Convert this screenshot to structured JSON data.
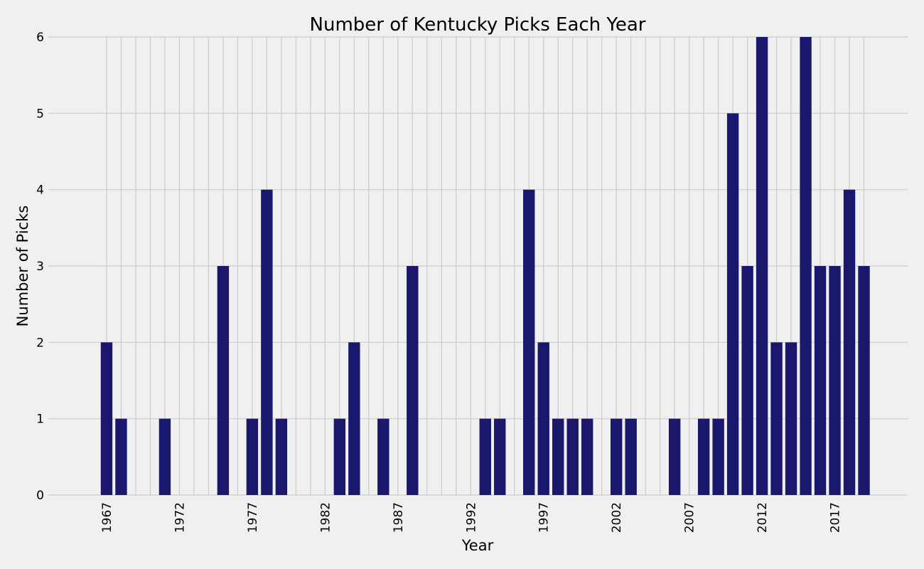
{
  "chart_data": {
    "type": "bar",
    "title": "Number of Kentucky Picks Each Year",
    "xlabel": "Year",
    "ylabel": "Number of Picks",
    "x": [
      1967,
      1968,
      1971,
      1975,
      1977,
      1978,
      1979,
      1983,
      1984,
      1986,
      1988,
      1993,
      1994,
      1996,
      1997,
      1998,
      1999,
      2000,
      2002,
      2003,
      2006,
      2008,
      2009,
      2010,
      2011,
      2012,
      2013,
      2014,
      2015,
      2016,
      2017,
      2018,
      2019
    ],
    "values": [
      2,
      1,
      1,
      3,
      1,
      4,
      1,
      1,
      2,
      1,
      3,
      1,
      1,
      4,
      2,
      1,
      1,
      1,
      1,
      1,
      1,
      1,
      1,
      5,
      3,
      6,
      2,
      2,
      6,
      3,
      3,
      4,
      3
    ],
    "xlim": [
      1963,
      2022
    ],
    "ylim": [
      0,
      6
    ],
    "xticks": [
      1967,
      1972,
      1977,
      1982,
      1987,
      1992,
      1997,
      2002,
      2007,
      2012,
      2017
    ],
    "xtick_labels": [
      "1967",
      "1972",
      "1977",
      "1982",
      "1987",
      "1992",
      "1997",
      "2002",
      "2007",
      "2012",
      "2017"
    ],
    "yticks": [
      0,
      1,
      2,
      3,
      4,
      5,
      6
    ],
    "ytick_labels": [
      "0",
      "1",
      "2",
      "3",
      "4",
      "5",
      "6"
    ],
    "xgrid_years": [
      1967,
      2019
    ],
    "grid": true,
    "bar_color": "#1a186c",
    "grid_color": "#cbcbcb",
    "background": "#f0f0f0"
  }
}
